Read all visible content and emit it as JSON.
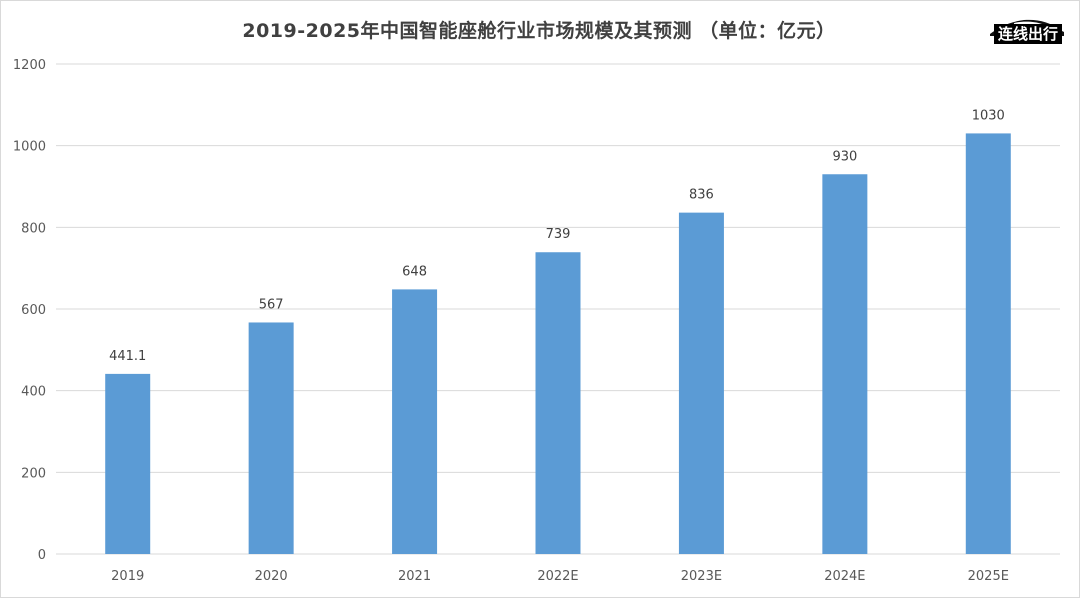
{
  "chart_data": {
    "type": "bar",
    "title": "2019-2025年中国智能座舱行业市场规模及其预测 （单位：亿元）",
    "categories": [
      "2019",
      "2020",
      "2021",
      "2022E",
      "2023E",
      "2024E",
      "2025E"
    ],
    "values": [
      441.1,
      567,
      648,
      739,
      836,
      930,
      1030
    ],
    "data_labels": [
      "441.1",
      "567",
      "648",
      "739",
      "836",
      "930",
      "1030"
    ],
    "xlabel": "",
    "ylabel": "",
    "ylim": [
      0,
      1200
    ],
    "yticks": [
      0,
      200,
      400,
      600,
      800,
      1000,
      1200
    ],
    "ytick_labels": [
      "0",
      "200",
      "400",
      "600",
      "800",
      "1000",
      "1200"
    ],
    "grid": true,
    "bar_color": "#5B9BD5",
    "grid_color": "#d9d9d9"
  },
  "watermark": {
    "text": "连线出行",
    "icon": "car-silhouette-icon"
  }
}
